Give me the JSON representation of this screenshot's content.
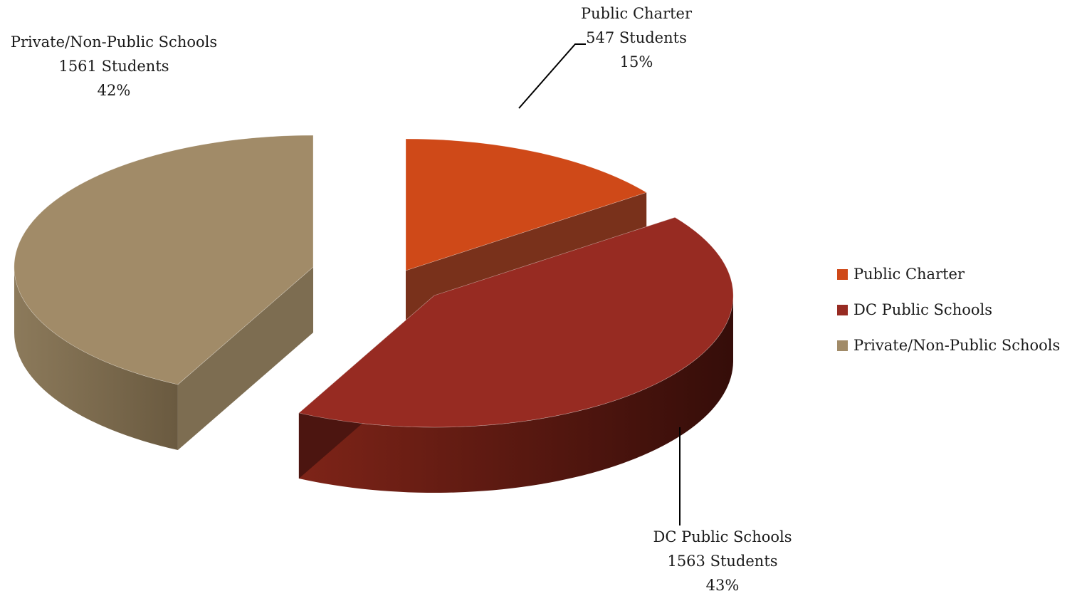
{
  "chart_data": {
    "type": "pie",
    "title": "",
    "slices": [
      {
        "label": "Public Charter",
        "students_label": "547 Students",
        "value": 547,
        "percent_label": "15%",
        "color": "#cf4918",
        "side_color": "#72260f"
      },
      {
        "label": "DC Public Schools",
        "students_label": "1563 Students",
        "value": 1563,
        "percent_label": "43%",
        "color": "#972b22",
        "side_color": "#4a1510"
      },
      {
        "label": "Private/Non-Public Schools",
        "students_label": "1561 Students",
        "value": 1561,
        "percent_label": "42%",
        "color": "#a18b68",
        "side_color": "#766548"
      }
    ],
    "legend": {
      "position": "right",
      "items": [
        "Public Charter",
        "DC Public Schools",
        "Private/Non-Public Schools"
      ]
    },
    "style": "3d-exploded"
  }
}
